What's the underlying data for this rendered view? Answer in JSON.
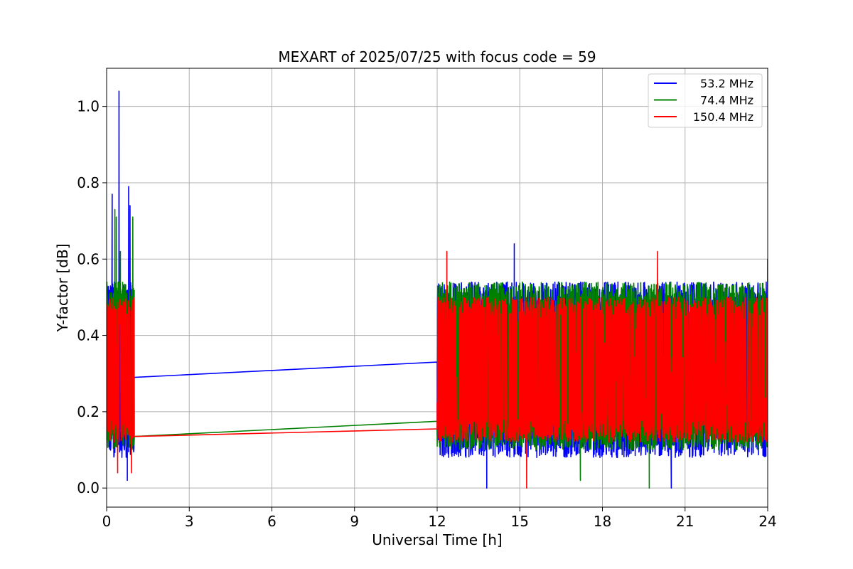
{
  "chart_data": {
    "type": "line",
    "title": "MEXART of 2025/07/25 with focus code = 59",
    "xlabel": "Universal Time [h]",
    "ylabel": "Y-factor [dB]",
    "xlim": [
      0,
      24
    ],
    "ylim": [
      -0.05,
      1.1
    ],
    "xticks": [
      0,
      3,
      6,
      9,
      12,
      15,
      18,
      21,
      24
    ],
    "xtick_labels": [
      "0",
      "3",
      "6",
      "9",
      "12",
      "15",
      "18",
      "21",
      "24"
    ],
    "yticks": [
      0.0,
      0.2,
      0.4,
      0.6,
      0.8,
      1.0
    ],
    "ytick_labels": [
      "0.0",
      "0.2",
      "0.4",
      "0.6",
      "0.8",
      "1.0"
    ],
    "grid": true,
    "legend_position": "top-right",
    "data_segments": [
      {
        "x_start": 0,
        "x_end": 1.0
      },
      {
        "x_start": 12.0,
        "x_end": 24.0
      }
    ],
    "series": [
      {
        "name": " 53.2 MHz",
        "color": "#0000ff",
        "y_typical_range": [
          0.08,
          0.54
        ],
        "y_min": 0.0,
        "y_max": 1.04,
        "gap_line": {
          "x": [
            1.0,
            12.0
          ],
          "y": [
            0.29,
            0.33
          ]
        },
        "spikes": [
          {
            "x": 0.45,
            "y": 1.04
          },
          {
            "x": 0.2,
            "y": 0.77
          },
          {
            "x": 0.8,
            "y": 0.79
          },
          {
            "x": 0.85,
            "y": 0.74
          },
          {
            "x": 0.75,
            "y": 0.02
          },
          {
            "x": 13.8,
            "y": 0.0
          },
          {
            "x": 20.5,
            "y": 0.0
          },
          {
            "x": 14.8,
            "y": 0.64
          },
          {
            "x": 24.0,
            "y": 0.6
          }
        ]
      },
      {
        "name": " 74.4 MHz",
        "color": "#008000",
        "y_typical_range": [
          0.1,
          0.54
        ],
        "y_min": 0.0,
        "y_max": 0.73,
        "gap_line": {
          "x": [
            1.0,
            12.0
          ],
          "y": [
            0.135,
            0.175
          ]
        },
        "spikes": [
          {
            "x": 0.3,
            "y": 0.73
          },
          {
            "x": 0.35,
            "y": 0.71
          },
          {
            "x": 0.95,
            "y": 0.71
          },
          {
            "x": 0.5,
            "y": 0.62
          },
          {
            "x": 19.7,
            "y": 0.0
          },
          {
            "x": 17.2,
            "y": 0.02
          }
        ]
      },
      {
        "name": "150.4 MHz",
        "color": "#ff0000",
        "y_typical_range": [
          0.12,
          0.5
        ],
        "y_min": 0.0,
        "y_max": 0.62,
        "gap_line": {
          "x": [
            1.0,
            12.0
          ],
          "y": [
            0.135,
            0.155
          ]
        },
        "spikes": [
          {
            "x": 12.35,
            "y": 0.62
          },
          {
            "x": 20.0,
            "y": 0.62
          },
          {
            "x": 15.25,
            "y": 0.0
          },
          {
            "x": 0.4,
            "y": 0.04
          },
          {
            "x": 0.9,
            "y": 0.04
          }
        ]
      }
    ]
  }
}
